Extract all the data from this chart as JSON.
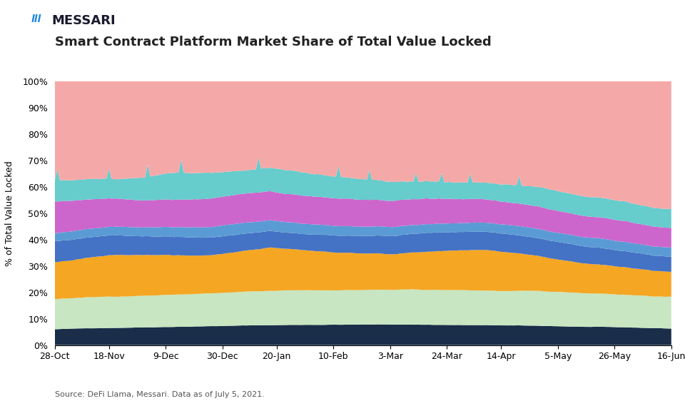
{
  "title": "Smart Contract Platform Market Share of Total Value Locked",
  "ylabel": "% of Total Value Locked",
  "source_text": "Source: DeFi Llama, Messari. Data as of July 5, 2021.",
  "messari_text": "MESSARI",
  "background_color": "#ffffff",
  "series_colors": {
    "Curve": "#1a2e4a",
    "AAVE": "#c8e6c1",
    "MakerDAO": "#f5a623",
    "Compound": "#4472c4",
    "Yearn-Finance": "#5b9bd5",
    "Uniswap": "#cc66cc",
    "SushiSwap": "#66cccc",
    "Other": "#f4a9a8"
  },
  "x_tick_labels": [
    "28-Oct",
    "18-Nov",
    "9-Dec",
    "30-Dec",
    "20-Jan",
    "10-Feb",
    "3-Mar",
    "24-Mar",
    "14-Apr",
    "5-May",
    "26-May",
    "16-Jun"
  ],
  "n_points": 240
}
